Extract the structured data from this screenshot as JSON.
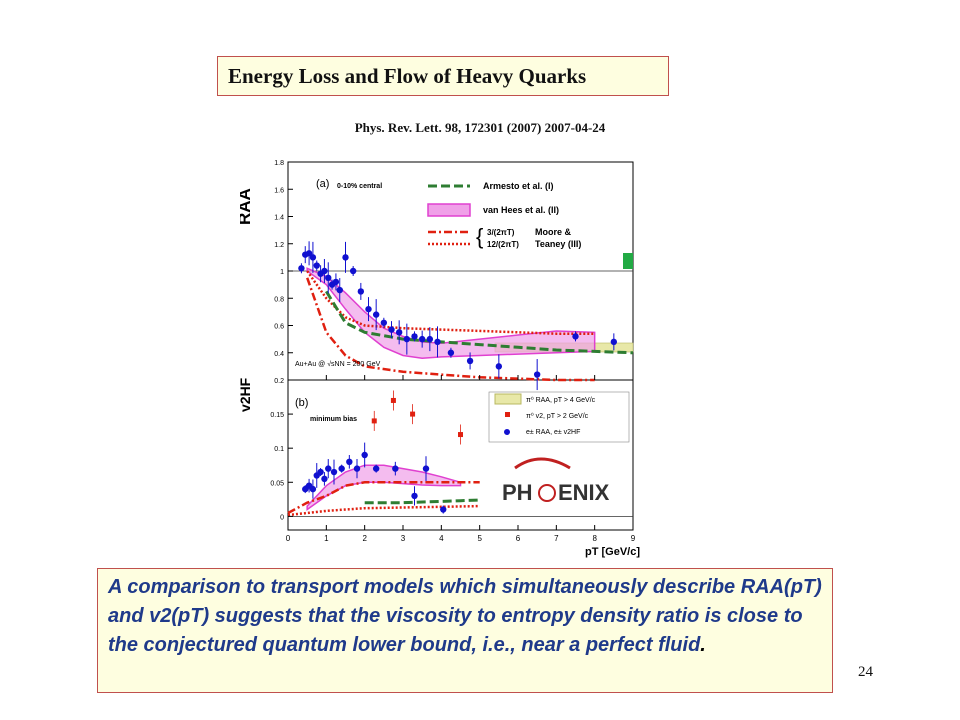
{
  "slide": {
    "title": "Energy Loss and Flow of Heavy Quarks",
    "citation": "Phys. Rev. Lett. 98, 172301 (2007)    2007-04-24",
    "caption": "A comparison to transport models which simultaneously describe RAA(pT) and v2(pT) suggests that the viscosity to entropy density ratio is close to the conjectured quantum lower bound, i.e., near a perfect fluid",
    "caption_end": ".",
    "page_number": "24",
    "logo_text_left": "PH",
    "logo_text_right": "ENIX"
  },
  "chart_data": [
    {
      "type": "scatter",
      "panel_label": "(a)",
      "note": "0-10% central",
      "system_label": "Au+Au @ √sNN = 200 GeV",
      "ylabel": "RAA",
      "xlim": [
        0,
        9
      ],
      "ylim": [
        0.2,
        1.8
      ],
      "yticks": [
        "0.2",
        "0.4",
        "0.6",
        "0.8",
        "1",
        "1.2",
        "1.4",
        "1.6",
        "1.8"
      ],
      "legend": {
        "armesto": "Armesto et al. (I)",
        "vanhees": "van Hees et al. (II)",
        "moore_a": "3/(2πT)",
        "moore_b": "12/(2πT)",
        "moore_name_1": "Moore &",
        "moore_name_2": "Teaney (III)"
      },
      "colors": {
        "armesto": "#2e7d32",
        "vanhees": "#e040d0",
        "moore": "#e02010",
        "data": "#1010d0",
        "box": "#d8d890"
      },
      "data_points": {
        "x": [
          0.35,
          0.45,
          0.55,
          0.65,
          0.75,
          0.85,
          0.95,
          1.05,
          1.15,
          1.25,
          1.35,
          1.5,
          1.7,
          1.9,
          2.1,
          2.3,
          2.5,
          2.7,
          2.9,
          3.1,
          3.3,
          3.5,
          3.7,
          3.9,
          4.25,
          4.75,
          5.5,
          6.5,
          7.5,
          8.5
        ],
        "y": [
          1.02,
          1.12,
          1.13,
          1.1,
          1.04,
          0.98,
          1.0,
          0.95,
          0.9,
          0.92,
          0.86,
          1.1,
          1.0,
          0.85,
          0.72,
          0.68,
          0.62,
          0.57,
          0.55,
          0.5,
          0.52,
          0.5,
          0.5,
          0.48,
          0.4,
          0.34,
          0.3,
          0.24,
          0.52,
          0.48
        ]
      },
      "armesto": {
        "x": [
          1,
          1.5,
          2,
          3,
          4,
          5,
          6,
          7,
          8,
          9
        ],
        "y": [
          0.85,
          0.62,
          0.55,
          0.5,
          0.48,
          0.46,
          0.44,
          0.42,
          0.41,
          0.4
        ]
      },
      "vanhees_upper": {
        "x": [
          0.5,
          1,
          1.5,
          2,
          2.5,
          3,
          3.5,
          4,
          5,
          6,
          7,
          8
        ],
        "y": [
          1.02,
          0.96,
          0.84,
          0.7,
          0.58,
          0.52,
          0.48,
          0.47,
          0.5,
          0.53,
          0.56,
          0.55
        ]
      },
      "vanhees_lower": {
        "x": [
          0.5,
          1,
          1.5,
          2,
          2.5,
          3,
          3.5,
          4,
          5,
          6,
          7,
          8
        ],
        "y": [
          1.0,
          0.9,
          0.72,
          0.55,
          0.44,
          0.38,
          0.36,
          0.37,
          0.38,
          0.39,
          0.4,
          0.41
        ]
      },
      "moore_a": {
        "x": [
          0.5,
          1,
          1.5,
          2,
          3,
          4,
          5,
          6,
          7,
          8
        ],
        "y": [
          0.95,
          0.55,
          0.38,
          0.3,
          0.26,
          0.24,
          0.22,
          0.21,
          0.2,
          0.2
        ]
      },
      "moore_b": {
        "x": [
          0.5,
          1,
          1.5,
          2,
          3,
          4,
          5,
          6,
          7,
          8
        ],
        "y": [
          1.0,
          0.8,
          0.66,
          0.6,
          0.58,
          0.57,
          0.56,
          0.55,
          0.54,
          0.54
        ]
      }
    },
    {
      "type": "scatter",
      "panel_label": "(b)",
      "note": "minimum bias",
      "ylabel": "v2HF",
      "xlabel": "pT [GeV/c]",
      "xlim": [
        0,
        9
      ],
      "ylim": [
        -0.02,
        0.2
      ],
      "yticks": [
        "0",
        "0.05",
        "0.1",
        "0.15"
      ],
      "xticks": [
        "0",
        "1",
        "2",
        "3",
        "4",
        "5",
        "6",
        "7",
        "8",
        "9"
      ],
      "legend": {
        "raa_pi": "π⁰ RAA, pT > 4 GeV/c",
        "v2_pi": "π⁰ v2, pT > 2 GeV/c",
        "e_raa": "e± RAA, e± v2HF"
      },
      "data_points": {
        "x": [
          0.45,
          0.55,
          0.65,
          0.75,
          0.85,
          0.95,
          1.05,
          1.2,
          1.4,
          1.6,
          1.8,
          2.0,
          2.3,
          2.8,
          3.3,
          3.6,
          4.05
        ],
        "y": [
          0.04,
          0.045,
          0.04,
          0.06,
          0.065,
          0.055,
          0.07,
          0.065,
          0.07,
          0.08,
          0.07,
          0.09,
          0.07,
          0.07,
          0.03,
          0.07,
          0.01
        ]
      },
      "pi0_v2": {
        "x": [
          2.25,
          2.75,
          3.25,
          4.5
        ],
        "y": [
          0.14,
          0.17,
          0.15,
          0.12
        ]
      },
      "armesto": {
        "x": [
          2,
          2.5,
          3,
          3.5,
          4,
          4.5,
          5
        ],
        "y": [
          0.02,
          0.02,
          0.02,
          0.021,
          0.022,
          0.023,
          0.024
        ]
      },
      "vanhees_upper": {
        "x": [
          0.5,
          1,
          1.5,
          2,
          2.5,
          3,
          3.5,
          4,
          4.5
        ],
        "y": [
          0.015,
          0.045,
          0.065,
          0.075,
          0.075,
          0.07,
          0.065,
          0.058,
          0.05
        ]
      },
      "vanhees_lower": {
        "x": [
          0.5,
          1,
          1.5,
          2,
          2.5,
          3,
          3.5,
          4,
          4.5
        ],
        "y": [
          0.01,
          0.03,
          0.045,
          0.05,
          0.05,
          0.048,
          0.046,
          0.045,
          0.045
        ]
      },
      "moore_a": {
        "x": [
          0,
          0.5,
          1,
          1.5,
          2,
          3,
          4,
          5
        ],
        "y": [
          0.005,
          0.02,
          0.03,
          0.045,
          0.05,
          0.05,
          0.05,
          0.05
        ]
      },
      "moore_b": {
        "x": [
          0,
          0.5,
          1,
          1.5,
          2,
          3,
          4,
          5
        ],
        "y": [
          0.002,
          0.005,
          0.008,
          0.01,
          0.012,
          0.013,
          0.014,
          0.015
        ]
      }
    }
  ]
}
